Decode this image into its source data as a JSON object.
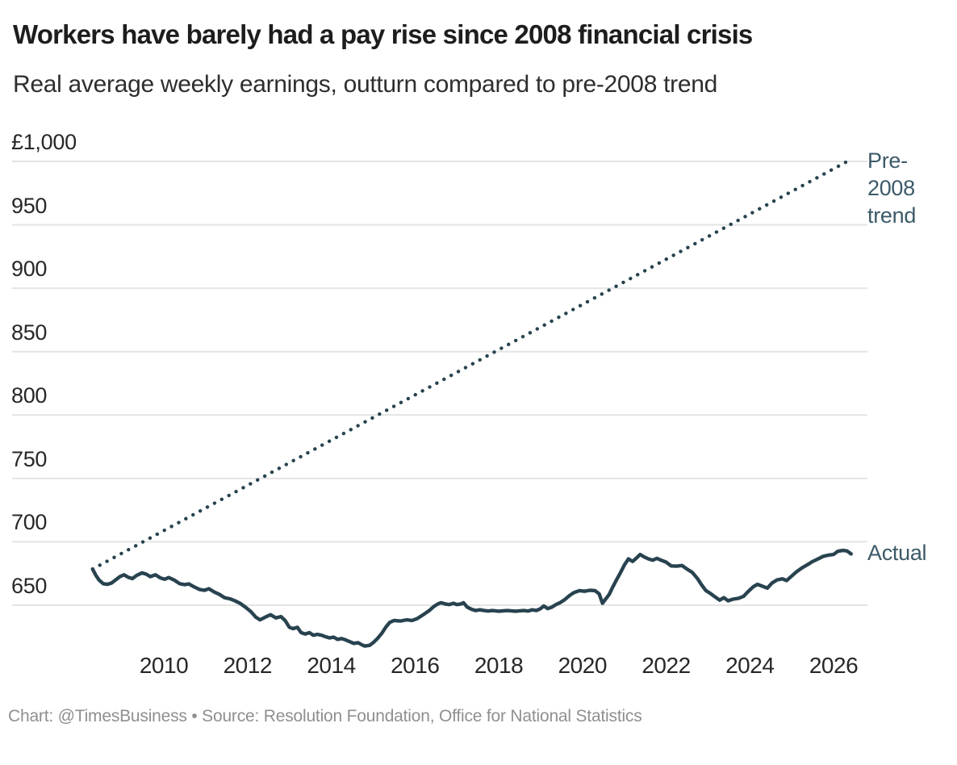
{
  "chart_data": {
    "type": "line",
    "title": "Workers have barely had a pay rise since 2008 financial crisis",
    "subtitle": "Real average weekly earnings, outturn compared to pre-2008 trend",
    "currency": "GBP",
    "xlabel": "",
    "ylabel": "",
    "xlim": [
      2007.6,
      2026.9
    ],
    "ylim": [
      610,
      1010
    ],
    "grid": "horizontal",
    "legend_position": "end-of-line-annotations",
    "colors": {
      "line": "#28434f",
      "annotation": "#3c5a69",
      "grid": "#e4e4e4"
    },
    "y_ticks": [
      {
        "value": 1000,
        "label": "£1,000"
      },
      {
        "value": 950,
        "label": "950"
      },
      {
        "value": 900,
        "label": "900"
      },
      {
        "value": 850,
        "label": "850"
      },
      {
        "value": 800,
        "label": "800"
      },
      {
        "value": 750,
        "label": "750"
      },
      {
        "value": 700,
        "label": "700"
      },
      {
        "value": 650,
        "label": "650"
      }
    ],
    "x_ticks": [
      {
        "value": 2010,
        "label": "2010"
      },
      {
        "value": 2012,
        "label": "2012"
      },
      {
        "value": 2014,
        "label": "2014"
      },
      {
        "value": 2016,
        "label": "2016"
      },
      {
        "value": 2018,
        "label": "2018"
      },
      {
        "value": 2020,
        "label": "2020"
      },
      {
        "value": 2022,
        "label": "2022"
      },
      {
        "value": 2024,
        "label": "2024"
      },
      {
        "value": 2026,
        "label": "2026"
      }
    ],
    "annotations": {
      "trend": "Pre-2008 trend",
      "actual": "Actual"
    },
    "series": [
      {
        "name": "Pre-2008 trend",
        "style": "dotted",
        "points": [
          [
            2008.3,
            678.5
          ],
          [
            2026.33,
            1000
          ]
        ]
      },
      {
        "name": "Actual",
        "style": "solid",
        "points": [
          [
            2008.3,
            678.5
          ],
          [
            2008.37,
            674
          ],
          [
            2008.45,
            670
          ],
          [
            2008.55,
            667
          ],
          [
            2008.65,
            666.5
          ],
          [
            2008.75,
            667.5
          ],
          [
            2008.85,
            670
          ],
          [
            2008.95,
            672.5
          ],
          [
            2009.05,
            674
          ],
          [
            2009.15,
            672
          ],
          [
            2009.25,
            671
          ],
          [
            2009.35,
            673.5
          ],
          [
            2009.48,
            675.5
          ],
          [
            2009.58,
            674.5
          ],
          [
            2009.68,
            672.5
          ],
          [
            2009.8,
            674
          ],
          [
            2009.92,
            671.5
          ],
          [
            2010.02,
            670.5
          ],
          [
            2010.12,
            671.8
          ],
          [
            2010.25,
            669.8
          ],
          [
            2010.38,
            667
          ],
          [
            2010.5,
            666.2
          ],
          [
            2010.6,
            666.8
          ],
          [
            2010.72,
            664.5
          ],
          [
            2010.85,
            662.5
          ],
          [
            2010.97,
            661.8
          ],
          [
            2011.08,
            663
          ],
          [
            2011.2,
            660.5
          ],
          [
            2011.33,
            658.5
          ],
          [
            2011.45,
            656
          ],
          [
            2011.58,
            655
          ],
          [
            2011.7,
            653.5
          ],
          [
            2011.82,
            651.5
          ],
          [
            2011.95,
            648.5
          ],
          [
            2012.08,
            645
          ],
          [
            2012.2,
            640.5
          ],
          [
            2012.3,
            638.5
          ],
          [
            2012.42,
            640.5
          ],
          [
            2012.55,
            642.5
          ],
          [
            2012.68,
            640
          ],
          [
            2012.8,
            641
          ],
          [
            2012.9,
            637.9
          ],
          [
            2013.0,
            632.6
          ],
          [
            2013.09,
            631.5
          ],
          [
            2013.19,
            632.6
          ],
          [
            2013.28,
            628.4
          ],
          [
            2013.38,
            627.3
          ],
          [
            2013.48,
            628.4
          ],
          [
            2013.57,
            626.3
          ],
          [
            2013.67,
            627
          ],
          [
            2013.77,
            626.3
          ],
          [
            2013.86,
            625.2
          ],
          [
            2013.96,
            624.2
          ],
          [
            2014.06,
            624.8
          ],
          [
            2014.15,
            623.1
          ],
          [
            2014.25,
            623.7
          ],
          [
            2014.35,
            622.6
          ],
          [
            2014.44,
            621.3
          ],
          [
            2014.54,
            619.9
          ],
          [
            2014.64,
            620.5
          ],
          [
            2014.73,
            618.8
          ],
          [
            2014.8,
            617.8
          ],
          [
            2014.92,
            618.4
          ],
          [
            2015.02,
            621
          ],
          [
            2015.11,
            624
          ],
          [
            2015.21,
            628
          ],
          [
            2015.31,
            633
          ],
          [
            2015.4,
            636.5
          ],
          [
            2015.5,
            638
          ],
          [
            2015.65,
            637.5
          ],
          [
            2015.8,
            638.5
          ],
          [
            2015.93,
            638
          ],
          [
            2016.05,
            639.4
          ],
          [
            2016.15,
            641.5
          ],
          [
            2016.25,
            643.7
          ],
          [
            2016.35,
            646
          ],
          [
            2016.45,
            649
          ],
          [
            2016.55,
            651
          ],
          [
            2016.62,
            652
          ],
          [
            2016.72,
            651
          ],
          [
            2016.82,
            650.5
          ],
          [
            2016.92,
            651.5
          ],
          [
            2017.0,
            650.5
          ],
          [
            2017.1,
            651
          ],
          [
            2017.16,
            652
          ],
          [
            2017.25,
            648.5
          ],
          [
            2017.35,
            646.8
          ],
          [
            2017.45,
            645.8
          ],
          [
            2017.55,
            646.4
          ],
          [
            2017.65,
            645.8
          ],
          [
            2017.75,
            645.4
          ],
          [
            2017.85,
            645.8
          ],
          [
            2018.0,
            645.3
          ],
          [
            2018.2,
            645.8
          ],
          [
            2018.4,
            645.3
          ],
          [
            2018.6,
            645.8
          ],
          [
            2018.7,
            645.4
          ],
          [
            2018.8,
            646.4
          ],
          [
            2018.9,
            645.8
          ],
          [
            2019.0,
            647.3
          ],
          [
            2019.08,
            649.4
          ],
          [
            2019.17,
            647.3
          ],
          [
            2019.27,
            648.5
          ],
          [
            2019.37,
            650.6
          ],
          [
            2019.47,
            652.1
          ],
          [
            2019.57,
            654.2
          ],
          [
            2019.7,
            657.8
          ],
          [
            2019.8,
            660
          ],
          [
            2019.93,
            661.5
          ],
          [
            2020.05,
            661
          ],
          [
            2020.18,
            661.8
          ],
          [
            2020.3,
            661.5
          ],
          [
            2020.4,
            659
          ],
          [
            2020.48,
            651.5
          ],
          [
            2020.56,
            655
          ],
          [
            2020.64,
            658.5
          ],
          [
            2020.72,
            664
          ],
          [
            2020.8,
            669
          ],
          [
            2020.9,
            675
          ],
          [
            2021.0,
            681.5
          ],
          [
            2021.1,
            686.5
          ],
          [
            2021.2,
            684.5
          ],
          [
            2021.3,
            687.5
          ],
          [
            2021.38,
            690
          ],
          [
            2021.48,
            688
          ],
          [
            2021.58,
            686.5
          ],
          [
            2021.68,
            685.5
          ],
          [
            2021.78,
            687
          ],
          [
            2021.88,
            685.5
          ],
          [
            2022.0,
            684
          ],
          [
            2022.12,
            681
          ],
          [
            2022.25,
            680.8
          ],
          [
            2022.38,
            681.3
          ],
          [
            2022.5,
            678.5
          ],
          [
            2022.62,
            676
          ],
          [
            2022.75,
            671
          ],
          [
            2022.85,
            666
          ],
          [
            2022.95,
            661.5
          ],
          [
            2023.05,
            659.5
          ],
          [
            2023.15,
            657
          ],
          [
            2023.28,
            654
          ],
          [
            2023.38,
            656
          ],
          [
            2023.48,
            653.5
          ],
          [
            2023.6,
            654.8
          ],
          [
            2023.73,
            655.5
          ],
          [
            2023.85,
            657
          ],
          [
            2023.95,
            660.5
          ],
          [
            2024.08,
            664.5
          ],
          [
            2024.18,
            666.5
          ],
          [
            2024.3,
            665
          ],
          [
            2024.42,
            663.5
          ],
          [
            2024.53,
            667.5
          ],
          [
            2024.65,
            670
          ],
          [
            2024.78,
            670.8
          ],
          [
            2024.88,
            669.5
          ],
          [
            2025.0,
            673
          ],
          [
            2025.12,
            676.5
          ],
          [
            2025.25,
            679.5
          ],
          [
            2025.38,
            682
          ],
          [
            2025.5,
            684.5
          ],
          [
            2025.63,
            686.5
          ],
          [
            2025.75,
            688.5
          ],
          [
            2025.88,
            689.5
          ],
          [
            2026.0,
            690
          ],
          [
            2026.1,
            692.5
          ],
          [
            2026.22,
            693.2
          ],
          [
            2026.32,
            692.8
          ],
          [
            2026.42,
            690.5
          ]
        ]
      }
    ]
  },
  "footer": {
    "text": "Chart: @TimesBusiness • Source: Resolution Foundation, Office for National Statistics"
  }
}
